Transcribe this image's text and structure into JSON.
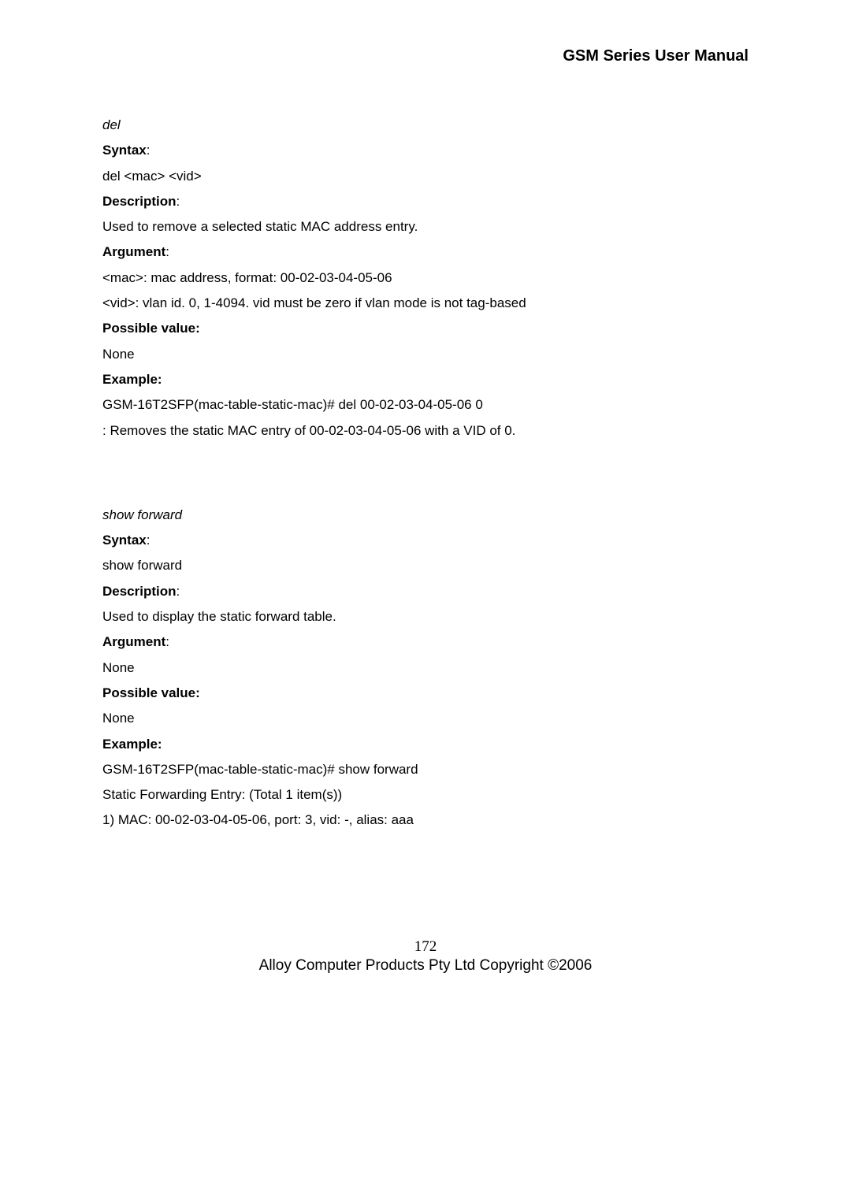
{
  "header": {
    "title": "GSM Series User Manual"
  },
  "sections": [
    {
      "command": "del",
      "syntax_label": "Syntax",
      "syntax_value": "del <mac> <vid>",
      "description_label": "Description",
      "description_value": "Used to remove a selected static MAC address entry.",
      "argument_label": "Argument",
      "argument_lines": [
        "<mac>: mac address, format: 00-02-03-04-05-06",
        "<vid>: vlan id. 0, 1-4094. vid must be zero if vlan mode is not tag-based"
      ],
      "possible_label": "Possible value:",
      "possible_value": "None",
      "example_label": "Example:",
      "example_lines": [
        "GSM-16T2SFP(mac-table-static-mac)# del 00-02-03-04-05-06 0",
        ": Removes the static MAC entry of 00-02-03-04-05-06 with a VID of 0."
      ]
    },
    {
      "command": "show forward",
      "syntax_label": "Syntax",
      "syntax_value": "show forward",
      "description_label": "Description",
      "description_value": "Used to display the static forward table.",
      "argument_label": "Argument",
      "argument_lines": [
        "None"
      ],
      "possible_label": "Possible value:",
      "possible_value": "None",
      "example_label": "Example:",
      "example_lines": [
        "GSM-16T2SFP(mac-table-static-mac)# show forward",
        "Static Forwarding Entry: (Total 1 item(s))",
        "1)  MAC: 00-02-03-04-05-06, port: 3, vid: -, alias: aaa"
      ]
    }
  ],
  "footer": {
    "page_number": "172",
    "copyright": "Alloy Computer Products Pty Ltd Copyright ©2006"
  }
}
